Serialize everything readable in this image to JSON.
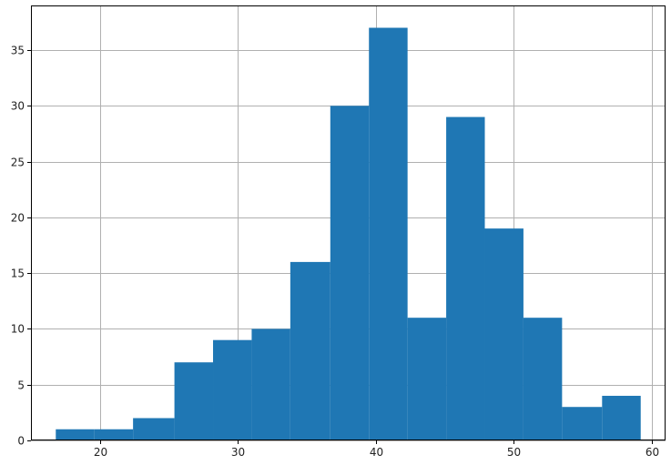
{
  "chart_data": {
    "type": "bar",
    "title": "",
    "xlabel": "",
    "ylabel": "",
    "bin_edges": [
      16.8,
      19.6,
      22.4,
      25.4,
      28.2,
      31.0,
      33.8,
      36.7,
      39.5,
      42.3,
      45.1,
      47.9,
      50.7,
      53.5,
      56.4,
      59.2
    ],
    "values": [
      1,
      1,
      2,
      7,
      9,
      10,
      16,
      30,
      37,
      11,
      29,
      19,
      11,
      3,
      4
    ],
    "xlim": [
      15,
      61
    ],
    "ylim": [
      0,
      39
    ],
    "x_ticks": [
      20,
      30,
      40,
      50,
      60
    ],
    "y_ticks": [
      0,
      5,
      10,
      15,
      20,
      25,
      30,
      35
    ],
    "grid": true,
    "legend": "none",
    "bar_color": "#1f77b4",
    "grid_color": "#b0b0b0"
  }
}
